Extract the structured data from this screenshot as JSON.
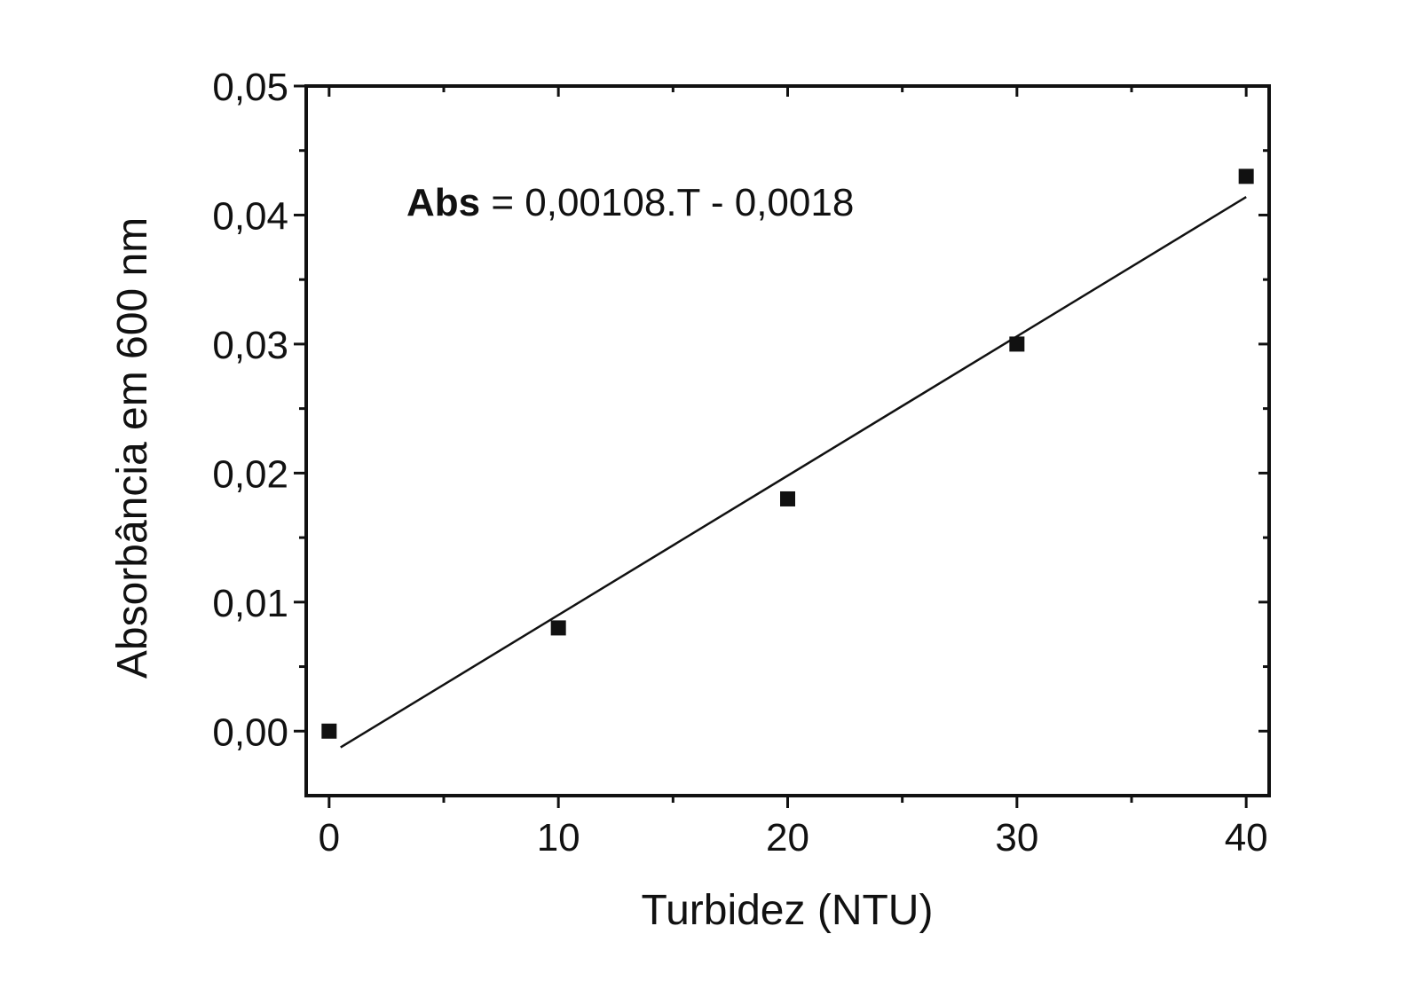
{
  "chart_data": {
    "type": "scatter",
    "xlabel": "Turbidez (NTU)",
    "ylabel": "Absorbância em 600 nm",
    "xlim": [
      -1,
      41
    ],
    "ylim": [
      -0.005,
      0.05
    ],
    "x_ticks": [
      0,
      10,
      20,
      30,
      40
    ],
    "x_tick_labels": [
      "0",
      "10",
      "20",
      "30",
      "40"
    ],
    "y_ticks": [
      0.0,
      0.01,
      0.02,
      0.03,
      0.04,
      0.05
    ],
    "y_tick_labels": [
      "0,00",
      "0,01",
      "0,02",
      "0,03",
      "0,04",
      "0,05"
    ],
    "grid": false,
    "points": [
      {
        "x": 0,
        "y": 0.0
      },
      {
        "x": 10,
        "y": 0.008
      },
      {
        "x": 20,
        "y": 0.018
      },
      {
        "x": 30,
        "y": 0.03
      },
      {
        "x": 40,
        "y": 0.043
      }
    ],
    "fit_line": {
      "slope": 0.00108,
      "intercept": -0.0018,
      "x_range": [
        0.5,
        40
      ]
    },
    "annotation": {
      "label": "Abs",
      "rest": " = 0,00108.T - 0,0018"
    },
    "colors": {
      "ink": "#111111",
      "background": "#ffffff"
    }
  }
}
